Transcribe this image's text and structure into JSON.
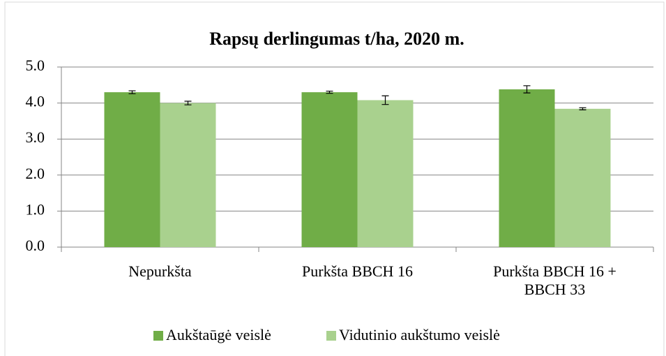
{
  "chart_data": {
    "type": "bar",
    "title": "Rapsų derlingumas t/ha, 2020 m.",
    "categories": [
      "Nepurkšta",
      "Purkšta BBCH 16",
      "Purkšta BBCH 16 + BBCH 33"
    ],
    "series": [
      {
        "name": "Aukštaūgė veislė",
        "color": "#70ad47",
        "values": [
          4.3,
          4.3,
          4.38
        ],
        "errors": [
          0.04,
          0.03,
          0.1
        ]
      },
      {
        "name": "Vidutinio aukštumo veislė",
        "color": "#a9d18e",
        "values": [
          4.0,
          4.08,
          3.84
        ],
        "errors": [
          0.05,
          0.12,
          0.03
        ]
      }
    ],
    "ylim": [
      0,
      5
    ],
    "yticks": [
      {
        "value": 0,
        "label": "0.0"
      },
      {
        "value": 1,
        "label": "1.0"
      },
      {
        "value": 2,
        "label": "2.0"
      },
      {
        "value": 3,
        "label": "3.0"
      },
      {
        "value": 4,
        "label": "4.0"
      },
      {
        "value": 5,
        "label": "5.0"
      }
    ],
    "grid": true,
    "legend": "bottom"
  }
}
